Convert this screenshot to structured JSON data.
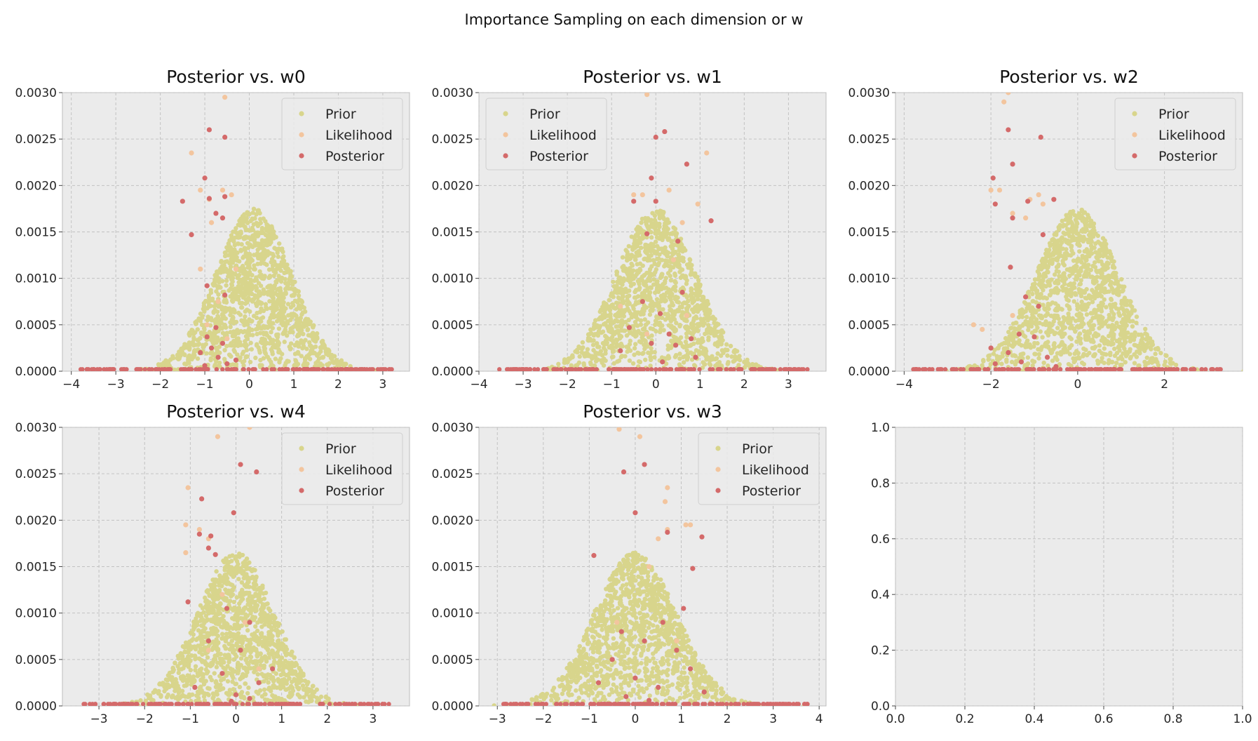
{
  "suptitle": "Importance Sampling on each dimension or w",
  "colors": {
    "prior": "#d8d58c",
    "likelihood": "#f3c59e",
    "posterior": "#d46a6a",
    "axes_bg": "#ebebeb",
    "grid": "#c2c2c2"
  },
  "legend_labels": [
    "Prior",
    "Likelihood",
    "Posterior"
  ],
  "chart_data": [
    {
      "type": "scatter",
      "title": "Posterior vs. w0",
      "xlim": [
        -4.2,
        3.6
      ],
      "ylim": [
        0,
        0.003
      ],
      "xticks": [
        -4,
        -3,
        -2,
        -1,
        0,
        1,
        2,
        3
      ],
      "yticks": [
        0,
        0.0005,
        0.001,
        0.0015,
        0.002,
        0.0025,
        0.003
      ],
      "legend": "top-right",
      "series": [
        {
          "name": "Prior",
          "mean": 0.1,
          "sd": 0.85,
          "peak": 0.00175,
          "count": 1300
        },
        {
          "name": "Likelihood",
          "values": [
            [
              -1.3,
              0.00235
            ],
            [
              -1.1,
              0.00195
            ],
            [
              -0.9,
              0.00185
            ],
            [
              -0.6,
              0.00195
            ],
            [
              -0.55,
              0.00295
            ],
            [
              -0.85,
              0.0016
            ],
            [
              -0.4,
              0.0019
            ],
            [
              -1.1,
              0.0011
            ],
            [
              -0.7,
              0.00075
            ],
            [
              -0.3,
              0.0011
            ],
            [
              -0.95,
              0.0005
            ],
            [
              -0.5,
              0.00035
            ]
          ]
        },
        {
          "name": "Posterior",
          "values": [
            [
              -0.9,
              0.0026
            ],
            [
              -0.55,
              0.00252
            ],
            [
              -1.0,
              0.00208
            ],
            [
              -1.5,
              0.00183
            ],
            [
              -0.9,
              0.00186
            ],
            [
              -0.55,
              0.00188
            ],
            [
              -0.75,
              0.0017
            ],
            [
              -0.6,
              0.00165
            ],
            [
              -1.3,
              0.00147
            ],
            [
              -0.95,
              0.00092
            ],
            [
              -0.55,
              0.00082
            ],
            [
              -0.75,
              0.00047
            ],
            [
              -0.95,
              0.00037
            ],
            [
              -0.6,
              0.0003
            ],
            [
              -0.85,
              0.00025
            ],
            [
              -1.1,
              0.0002
            ],
            [
              -0.7,
              0.00015
            ],
            [
              -0.3,
              0.00012
            ],
            [
              -0.5,
              8e-05
            ],
            [
              -1.0,
              6e-05
            ]
          ]
        }
      ]
    },
    {
      "type": "scatter",
      "title": "Posterior vs. w1",
      "xlim": [
        -4.0,
        3.85
      ],
      "ylim": [
        0,
        0.003
      ],
      "xticks": [
        -4,
        -3,
        -2,
        -1,
        0,
        1,
        2,
        3
      ],
      "yticks": [
        0,
        0.0005,
        0.001,
        0.0015,
        0.002,
        0.0025,
        0.003
      ],
      "legend": "top-left",
      "series": [
        {
          "name": "Prior",
          "mean": 0.0,
          "sd": 0.9,
          "peak": 0.00175,
          "count": 1300
        },
        {
          "name": "Likelihood",
          "values": [
            [
              -0.2,
              0.00298
            ],
            [
              0.95,
              0.0018
            ],
            [
              1.15,
              0.00235
            ],
            [
              -0.5,
              0.0019
            ],
            [
              0.6,
              0.0016
            ],
            [
              0.3,
              0.00195
            ],
            [
              -0.3,
              0.0019
            ],
            [
              0.4,
              0.0012
            ],
            [
              -0.8,
              0.0007
            ],
            [
              0.7,
              0.0006
            ],
            [
              -0.2,
              0.0004
            ]
          ]
        },
        {
          "name": "Posterior",
          "values": [
            [
              0.2,
              0.00258
            ],
            [
              0.0,
              0.00252
            ],
            [
              0.7,
              0.00223
            ],
            [
              -0.1,
              0.00208
            ],
            [
              -0.5,
              0.00183
            ],
            [
              0.0,
              0.00183
            ],
            [
              1.25,
              0.00162
            ],
            [
              -0.2,
              0.00148
            ],
            [
              0.5,
              0.0014
            ],
            [
              0.6,
              0.00085
            ],
            [
              -0.3,
              0.00075
            ],
            [
              0.1,
              0.00062
            ],
            [
              -0.6,
              0.00047
            ],
            [
              0.3,
              0.0004
            ],
            [
              0.8,
              0.00035
            ],
            [
              -0.1,
              0.0003
            ],
            [
              0.45,
              0.00028
            ],
            [
              -0.8,
              0.00022
            ],
            [
              0.9,
              0.00015
            ],
            [
              0.15,
              0.0001
            ]
          ]
        }
      ]
    },
    {
      "type": "scatter",
      "title": "Posterior vs. w2",
      "xlim": [
        -4.2,
        3.8
      ],
      "ylim": [
        0,
        0.003
      ],
      "xticks": [
        -4,
        -2,
        0,
        2
      ],
      "yticks": [
        0,
        0.0005,
        0.001,
        0.0015,
        0.002,
        0.0025,
        0.003
      ],
      "legend": "top-right",
      "series": [
        {
          "name": "Prior",
          "mean": 0.0,
          "sd": 0.95,
          "peak": 0.00175,
          "count": 1300
        },
        {
          "name": "Likelihood",
          "values": [
            [
              -1.7,
              0.0029
            ],
            [
              -1.6,
              0.003
            ],
            [
              -2.0,
              0.00195
            ],
            [
              -1.8,
              0.00195
            ],
            [
              -1.5,
              0.0017
            ],
            [
              -0.9,
              0.0019
            ],
            [
              -1.1,
              0.00185
            ],
            [
              -0.8,
              0.0018
            ],
            [
              -1.2,
              0.00165
            ],
            [
              -2.4,
              0.0005
            ],
            [
              -2.2,
              0.00045
            ],
            [
              -1.5,
              0.0006
            ]
          ]
        },
        {
          "name": "Posterior",
          "values": [
            [
              -1.6,
              0.0026
            ],
            [
              -0.85,
              0.00252
            ],
            [
              -1.5,
              0.00223
            ],
            [
              -1.95,
              0.00208
            ],
            [
              -1.9,
              0.0018
            ],
            [
              -1.15,
              0.00183
            ],
            [
              -0.55,
              0.00185
            ],
            [
              -1.5,
              0.00165
            ],
            [
              -0.8,
              0.00147
            ],
            [
              -1.55,
              0.00112
            ],
            [
              -1.2,
              0.0008
            ],
            [
              -0.9,
              0.0007
            ],
            [
              -1.35,
              0.0004
            ],
            [
              -1.0,
              0.00037
            ],
            [
              -2.0,
              0.00025
            ],
            [
              -1.6,
              0.0002
            ],
            [
              -0.7,
              0.00015
            ],
            [
              -1.3,
              0.0001
            ],
            [
              -1.9,
              8e-05
            ],
            [
              -0.5,
              5e-05
            ]
          ]
        }
      ]
    },
    {
      "type": "scatter",
      "title": "Posterior vs. w4",
      "xlim": [
        -3.8,
        3.8
      ],
      "ylim": [
        0,
        0.003
      ],
      "xticks": [
        -3,
        -2,
        -1,
        0,
        1,
        2,
        3
      ],
      "yticks": [
        0,
        0.0005,
        0.001,
        0.0015,
        0.002,
        0.0025,
        0.003
      ],
      "legend": "top-right",
      "series": [
        {
          "name": "Prior",
          "mean": 0.0,
          "sd": 0.85,
          "peak": 0.00165,
          "count": 1300
        },
        {
          "name": "Likelihood",
          "values": [
            [
              -0.4,
              0.0029
            ],
            [
              0.3,
              0.003
            ],
            [
              -1.05,
              0.00235
            ],
            [
              -1.1,
              0.00195
            ],
            [
              -0.8,
              0.0019
            ],
            [
              -0.6,
              0.0018
            ],
            [
              -1.1,
              0.00165
            ],
            [
              -0.3,
              0.0012
            ],
            [
              0.2,
              0.0009
            ],
            [
              -0.6,
              0.0006
            ],
            [
              0.5,
              0.0004
            ]
          ]
        },
        {
          "name": "Posterior",
          "values": [
            [
              0.1,
              0.0026
            ],
            [
              0.45,
              0.00252
            ],
            [
              -0.75,
              0.00223
            ],
            [
              -0.05,
              0.00208
            ],
            [
              -0.8,
              0.00185
            ],
            [
              -0.55,
              0.00183
            ],
            [
              -0.6,
              0.0017
            ],
            [
              -0.45,
              0.00163
            ],
            [
              -1.05,
              0.00112
            ],
            [
              -0.2,
              0.00105
            ],
            [
              0.3,
              0.0009
            ],
            [
              -0.6,
              0.0007
            ],
            [
              0.1,
              0.0006
            ],
            [
              0.8,
              0.0004
            ],
            [
              -0.3,
              0.00035
            ],
            [
              0.5,
              0.00025
            ],
            [
              -0.9,
              0.0002
            ],
            [
              0.0,
              0.00012
            ],
            [
              0.3,
              8e-05
            ],
            [
              -0.1,
              5e-05
            ]
          ]
        }
      ]
    },
    {
      "type": "scatter",
      "title": "Posterior vs. w3",
      "xlim": [
        -3.4,
        4.15
      ],
      "ylim": [
        0,
        0.003
      ],
      "xticks": [
        -3,
        -2,
        -1,
        0,
        1,
        2,
        3,
        4
      ],
      "yticks": [
        0,
        0.0005,
        0.001,
        0.0015,
        0.002,
        0.0025,
        0.003
      ],
      "legend": "top-right",
      "series": [
        {
          "name": "Prior",
          "mean": 0.0,
          "sd": 0.9,
          "peak": 0.00165,
          "count": 1300
        },
        {
          "name": "Likelihood",
          "values": [
            [
              -0.35,
              0.00298
            ],
            [
              0.1,
              0.0029
            ],
            [
              0.7,
              0.00235
            ],
            [
              0.65,
              0.0022
            ],
            [
              1.1,
              0.00195
            ],
            [
              1.2,
              0.00195
            ],
            [
              0.7,
              0.0019
            ],
            [
              0.5,
              0.0018
            ],
            [
              0.3,
              0.0015
            ],
            [
              -0.4,
              0.0009
            ],
            [
              0.9,
              0.0007
            ]
          ]
        },
        {
          "name": "Posterior",
          "values": [
            [
              -0.25,
              0.00252
            ],
            [
              0.2,
              0.0026
            ],
            [
              0.0,
              0.00208
            ],
            [
              0.7,
              0.00187
            ],
            [
              1.45,
              0.00182
            ],
            [
              1.25,
              0.00148
            ],
            [
              -0.9,
              0.00162
            ],
            [
              1.05,
              0.00105
            ],
            [
              0.6,
              0.0009
            ],
            [
              -0.3,
              0.0008
            ],
            [
              0.2,
              0.0007
            ],
            [
              0.9,
              0.0006
            ],
            [
              -0.5,
              0.0005
            ],
            [
              1.2,
              0.0004
            ],
            [
              0.0,
              0.0003
            ],
            [
              -0.8,
              0.00025
            ],
            [
              0.5,
              0.0002
            ],
            [
              1.5,
              0.00015
            ],
            [
              -0.2,
              0.0001
            ],
            [
              0.3,
              6e-05
            ]
          ]
        }
      ]
    },
    {
      "type": "scatter",
      "title": "",
      "xlim": [
        0,
        1
      ],
      "ylim": [
        0,
        1
      ],
      "xticks": [
        0.0,
        0.2,
        0.4,
        0.6,
        0.8,
        1.0
      ],
      "yticks": [
        0.0,
        0.2,
        0.4,
        0.6,
        0.8,
        1.0
      ],
      "legend": "none",
      "series": []
    }
  ]
}
